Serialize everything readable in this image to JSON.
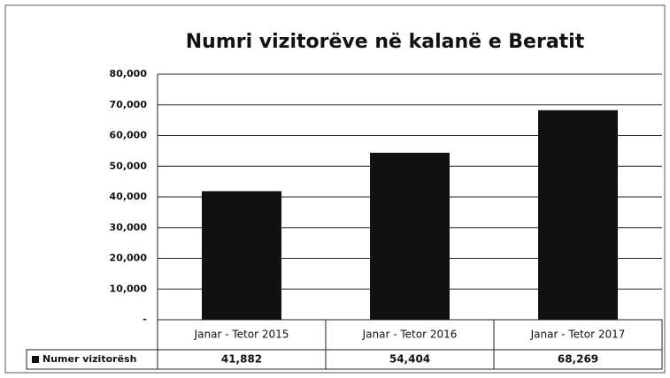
{
  "chart_data": {
    "type": "bar",
    "title": "Numri vizitorëve në kalanë e Beratit",
    "categories": [
      "Janar - Tetor 2015",
      "Janar - Tetor 2016",
      "Janar - Tetor 2017"
    ],
    "series": [
      {
        "name": "Numer vizitorësh",
        "color": "#111111",
        "values": [
          41882,
          54404,
          68269
        ],
        "value_labels": [
          "41,882",
          "54,404",
          "68,269"
        ]
      }
    ],
    "ylim": [
      0,
      80000
    ],
    "yticks": [
      {
        "value": 0,
        "label": "-"
      },
      {
        "value": 10000,
        "label": "10,000"
      },
      {
        "value": 20000,
        "label": "20,000"
      },
      {
        "value": 30000,
        "label": "30,000"
      },
      {
        "value": 40000,
        "label": "40,000"
      },
      {
        "value": 50000,
        "label": "50,000"
      },
      {
        "value": 60000,
        "label": "60,000"
      },
      {
        "value": 70000,
        "label": "70,000"
      },
      {
        "value": 80000,
        "label": "80,000"
      }
    ],
    "grid": true
  }
}
